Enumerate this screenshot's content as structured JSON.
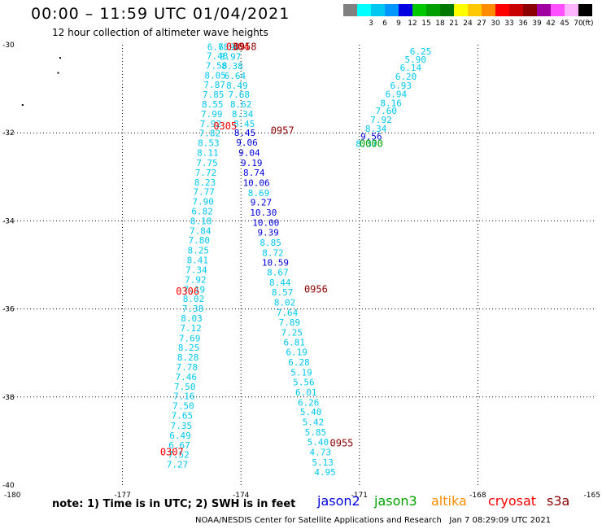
{
  "title": "00:00 – 11:59 UTC 01/04/2021",
  "subtitle": "12 hour collection of altimeter wave heights",
  "notes": "note: 1) Time is in UTC; 2) SWH is in feet",
  "credit": "NOAA/NESDIS Center for Satellite Applications and Research",
  "generated": "Jan  7 08:29:09 UTC 2021",
  "legend": {
    "unit": "(ft)",
    "bins": [
      {
        "label": "",
        "color": "#808080"
      },
      {
        "label": "3",
        "color": "#00ffff"
      },
      {
        "label": "6",
        "color": "#00c8f0"
      },
      {
        "label": "9",
        "color": "#0096ff"
      },
      {
        "label": "12",
        "color": "#0000e0"
      },
      {
        "label": "15",
        "color": "#00c800"
      },
      {
        "label": "18",
        "color": "#00a000"
      },
      {
        "label": "21",
        "color": "#007800"
      },
      {
        "label": "24",
        "color": "#ffff00"
      },
      {
        "label": "27",
        "color": "#ffc800"
      },
      {
        "label": "30",
        "color": "#ff8c00"
      },
      {
        "label": "33",
        "color": "#ff0000"
      },
      {
        "label": "36",
        "color": "#c80000"
      },
      {
        "label": "39",
        "color": "#8c0000"
      },
      {
        "label": "42",
        "color": "#a000a0"
      },
      {
        "label": "45",
        "color": "#ff50ff"
      },
      {
        "label": "70",
        "color": "#ffb4ff"
      },
      {
        "label": "",
        "color": "#000000"
      }
    ]
  },
  "missions": [
    {
      "name": "jason2",
      "color": "#0000e0"
    },
    {
      "name": "jason3",
      "color": "#00a000"
    },
    {
      "name": "altika",
      "color": "#ff8c00"
    },
    {
      "name": "cryosat",
      "color": "#ff0000"
    },
    {
      "name": "s3a",
      "color": "#8c0000"
    }
  ],
  "axes": {
    "lon_ticks": [
      -180,
      -177,
      -174,
      -171,
      -168,
      -165
    ],
    "lon_tick_labels": [
      "-180",
      "-177",
      "-174",
      "-171",
      "-168",
      "-165"
    ],
    "lat_ticks": [
      -30,
      -32,
      -34,
      -36,
      -38,
      -40
    ],
    "lat_tick_labels": [
      "-30",
      "-32",
      "-34",
      "-36",
      "-38",
      "-40"
    ],
    "lon_range": [
      -180,
      -165
    ],
    "lat_range": [
      -40,
      -30
    ],
    "grid": "dotted"
  },
  "tracks": [
    {
      "satellite": "cryosat",
      "color": "#00c8f0",
      "time_labels": [
        {
          "text": "0306",
          "lon": -175.35,
          "lat": -35.6,
          "color": "#ff0000"
        },
        {
          "text": "0307",
          "lon": -175.75,
          "lat": -39.25,
          "color": "#ff0000"
        }
      ],
      "points": [
        {
          "lon": -174.58,
          "lat": -30.05,
          "v": "6.78"
        },
        {
          "lon": -174.6,
          "lat": -30.25,
          "v": "7.48"
        },
        {
          "lon": -174.62,
          "lat": -30.47,
          "v": "7.58"
        },
        {
          "lon": -174.65,
          "lat": -30.69,
          "v": "8.05"
        },
        {
          "lon": -174.67,
          "lat": -30.91,
          "v": "7.87"
        },
        {
          "lon": -174.7,
          "lat": -31.13,
          "v": "7.85"
        },
        {
          "lon": -174.72,
          "lat": -31.35,
          "v": "8.55"
        },
        {
          "lon": -174.74,
          "lat": -31.57,
          "v": "7.99"
        },
        {
          "lon": -174.77,
          "lat": -31.79,
          "v": "7.92"
        },
        {
          "lon": -174.79,
          "lat": -32.01,
          "v": "7.82"
        },
        {
          "lon": -174.82,
          "lat": -32.23,
          "v": "8.53"
        },
        {
          "lon": -174.84,
          "lat": -32.45,
          "v": "8.11"
        },
        {
          "lon": -174.86,
          "lat": -32.68,
          "v": "7.75"
        },
        {
          "lon": -174.89,
          "lat": -32.9,
          "v": "7.72"
        },
        {
          "lon": -174.91,
          "lat": -33.12,
          "v": "8.23"
        },
        {
          "lon": -174.94,
          "lat": -33.34,
          "v": "7.77"
        },
        {
          "lon": -174.96,
          "lat": -33.56,
          "v": "7.90"
        },
        {
          "lon": -174.98,
          "lat": -33.78,
          "v": "6.82"
        },
        {
          "lon": -175.01,
          "lat": -34.0,
          "v": "8.18"
        },
        {
          "lon": -175.03,
          "lat": -34.22,
          "v": "7.84"
        },
        {
          "lon": -175.06,
          "lat": -34.44,
          "v": "7.80"
        },
        {
          "lon": -175.08,
          "lat": -34.67,
          "v": "8.25"
        },
        {
          "lon": -175.1,
          "lat": -34.89,
          "v": "8.41"
        },
        {
          "lon": -175.13,
          "lat": -35.11,
          "v": "7.34"
        },
        {
          "lon": -175.15,
          "lat": -35.33,
          "v": "7.92"
        },
        {
          "lon": -175.18,
          "lat": -35.55,
          "v": "7.19"
        },
        {
          "lon": -175.2,
          "lat": -35.77,
          "v": "8.02"
        },
        {
          "lon": -175.22,
          "lat": -35.99,
          "v": "7.38"
        },
        {
          "lon": -175.25,
          "lat": -36.21,
          "v": "8.03"
        },
        {
          "lon": -175.27,
          "lat": -36.43,
          "v": "7.12"
        },
        {
          "lon": -175.3,
          "lat": -36.66,
          "v": "7.69"
        },
        {
          "lon": -175.32,
          "lat": -36.88,
          "v": "8.25"
        },
        {
          "lon": -175.34,
          "lat": -37.1,
          "v": "8.28"
        },
        {
          "lon": -175.37,
          "lat": -37.32,
          "v": "7.78"
        },
        {
          "lon": -175.39,
          "lat": -37.54,
          "v": "7.46"
        },
        {
          "lon": -175.42,
          "lat": -37.76,
          "v": "7.50"
        },
        {
          "lon": -175.44,
          "lat": -37.98,
          "v": "7.16"
        },
        {
          "lon": -175.46,
          "lat": -38.2,
          "v": "7.50"
        },
        {
          "lon": -175.49,
          "lat": -38.42,
          "v": "7.65"
        },
        {
          "lon": -175.51,
          "lat": -38.65,
          "v": "7.35"
        },
        {
          "lon": -175.54,
          "lat": -38.87,
          "v": "6.49"
        },
        {
          "lon": -175.56,
          "lat": -39.09,
          "v": "6.67"
        },
        {
          "lon": -175.58,
          "lat": -39.31,
          "v": "7.52"
        },
        {
          "lon": -175.61,
          "lat": -39.53,
          "v": "7.27"
        }
      ]
    },
    {
      "satellite": "cryosat-s3a-crossing",
      "color": "#00c8f0",
      "time_labels": [
        {
          "text": "0305",
          "lon": -174.4,
          "lat": -31.85,
          "color": "#ff0000"
        },
        {
          "text": "0304",
          "lon": -174.08,
          "lat": -30.05,
          "color": "#ff0000"
        },
        {
          "text": "0958",
          "lon": -173.9,
          "lat": -30.05,
          "color": "#8c0000"
        }
      ],
      "points": [
        {
          "lon": -174.3,
          "lat": -30.05,
          "v": "6.98"
        },
        {
          "lon": -174.27,
          "lat": -30.27,
          "v": "8.97"
        },
        {
          "lon": -174.22,
          "lat": -30.48,
          "v": "8.38"
        },
        {
          "lon": -174.15,
          "lat": -30.7,
          "v": "6.64"
        },
        {
          "lon": -174.1,
          "lat": -30.92,
          "v": "8.49"
        },
        {
          "lon": -174.05,
          "lat": -31.13,
          "v": "7.68"
        },
        {
          "lon": -174.0,
          "lat": -31.35,
          "v": "8.62"
        },
        {
          "lon": -173.96,
          "lat": -31.57,
          "v": "8.34"
        },
        {
          "lon": -173.92,
          "lat": -31.79,
          "v": "8.45"
        }
      ]
    },
    {
      "satellite": "s3a",
      "color": "#00c8f0",
      "time_labels": [
        {
          "text": "0957",
          "lon": -172.95,
          "lat": -31.95,
          "color": "#8c0000"
        },
        {
          "text": "0956",
          "lon": -172.1,
          "lat": -35.55,
          "color": "#8c0000"
        },
        {
          "text": "0955",
          "lon": -171.45,
          "lat": -39.05,
          "color": "#8c0000"
        }
      ],
      "points": [
        {
          "lon": -173.9,
          "lat": -32.0,
          "v": "8.45",
          "c": "#0000e0"
        },
        {
          "lon": -173.85,
          "lat": -32.22,
          "v": "9.06",
          "c": "#0000e0"
        },
        {
          "lon": -173.79,
          "lat": -32.45,
          "v": "9.04",
          "c": "#0000e0"
        },
        {
          "lon": -173.73,
          "lat": -32.68,
          "v": "9.19",
          "c": "#0000e0"
        },
        {
          "lon": -173.67,
          "lat": -32.9,
          "v": "8.74",
          "c": "#0000e0"
        },
        {
          "lon": -173.61,
          "lat": -33.13,
          "v": "10.06",
          "c": "#0000e0"
        },
        {
          "lon": -173.55,
          "lat": -33.36,
          "v": "8.69"
        },
        {
          "lon": -173.49,
          "lat": -33.58,
          "v": "9.27",
          "c": "#0000e0"
        },
        {
          "lon": -173.43,
          "lat": -33.81,
          "v": "10.30",
          "c": "#0000e0"
        },
        {
          "lon": -173.37,
          "lat": -34.04,
          "v": "10.00",
          "c": "#0000e0"
        },
        {
          "lon": -173.31,
          "lat": -34.26,
          "v": "9.39",
          "c": "#0000e0"
        },
        {
          "lon": -173.25,
          "lat": -34.49,
          "v": "8.85"
        },
        {
          "lon": -173.19,
          "lat": -34.72,
          "v": "8.72"
        },
        {
          "lon": -173.13,
          "lat": -34.94,
          "v": "10.59",
          "c": "#0000e0"
        },
        {
          "lon": -173.07,
          "lat": -35.17,
          "v": "8.67"
        },
        {
          "lon": -173.01,
          "lat": -35.4,
          "v": "8.44"
        },
        {
          "lon": -172.95,
          "lat": -35.62,
          "v": "8.57"
        },
        {
          "lon": -172.89,
          "lat": -35.85,
          "v": "8.02"
        },
        {
          "lon": -172.83,
          "lat": -36.08,
          "v": "7.64"
        },
        {
          "lon": -172.77,
          "lat": -36.3,
          "v": "7.89"
        },
        {
          "lon": -172.71,
          "lat": -36.53,
          "v": "7.25"
        },
        {
          "lon": -172.65,
          "lat": -36.76,
          "v": "6.81"
        },
        {
          "lon": -172.59,
          "lat": -36.98,
          "v": "6.19"
        },
        {
          "lon": -172.53,
          "lat": -37.21,
          "v": "6.28"
        },
        {
          "lon": -172.47,
          "lat": -37.44,
          "v": "5.19"
        },
        {
          "lon": -172.41,
          "lat": -37.66,
          "v": "5.56"
        },
        {
          "lon": -172.35,
          "lat": -37.89,
          "v": "6.01"
        },
        {
          "lon": -172.29,
          "lat": -38.12,
          "v": "6.26"
        },
        {
          "lon": -172.23,
          "lat": -38.34,
          "v": "5.40"
        },
        {
          "lon": -172.17,
          "lat": -38.57,
          "v": "5.42"
        },
        {
          "lon": -172.11,
          "lat": -38.8,
          "v": "5.85"
        },
        {
          "lon": -172.05,
          "lat": -39.02,
          "v": "5.40"
        },
        {
          "lon": -171.99,
          "lat": -39.25,
          "v": "4.73"
        },
        {
          "lon": -171.93,
          "lat": -39.48,
          "v": "5.13"
        },
        {
          "lon": -171.87,
          "lat": -39.7,
          "v": "4.95"
        }
      ]
    },
    {
      "satellite": "jason3",
      "color": "#00c8f0",
      "time_labels": [
        {
          "text": "0000",
          "lon": -170.7,
          "lat": -32.25,
          "color": "#00a000"
        }
      ],
      "points": [
        {
          "lon": -169.45,
          "lat": -30.15,
          "v": "6.25"
        },
        {
          "lon": -169.58,
          "lat": -30.33,
          "v": "5.90"
        },
        {
          "lon": -169.7,
          "lat": -30.52,
          "v": "6.14"
        },
        {
          "lon": -169.82,
          "lat": -30.72,
          "v": "6.20"
        },
        {
          "lon": -169.95,
          "lat": -30.92,
          "v": "6.93"
        },
        {
          "lon": -170.07,
          "lat": -31.12,
          "v": "6.94"
        },
        {
          "lon": -170.2,
          "lat": -31.32,
          "v": "8.16"
        },
        {
          "lon": -170.32,
          "lat": -31.5,
          "v": "7.60"
        },
        {
          "lon": -170.45,
          "lat": -31.7,
          "v": "7.92"
        },
        {
          "lon": -170.58,
          "lat": -31.9,
          "v": "8.34"
        },
        {
          "lon": -170.7,
          "lat": -32.08,
          "v": "9.56",
          "c": "#0000e0"
        },
        {
          "lon": -170.82,
          "lat": -32.25,
          "v": "8.37"
        }
      ]
    }
  ],
  "scatter_marks": [
    {
      "lon": -178.6,
      "lat": -30.28
    },
    {
      "lon": -178.65,
      "lat": -30.62
    },
    {
      "lon": -179.55,
      "lat": -31.35
    }
  ]
}
